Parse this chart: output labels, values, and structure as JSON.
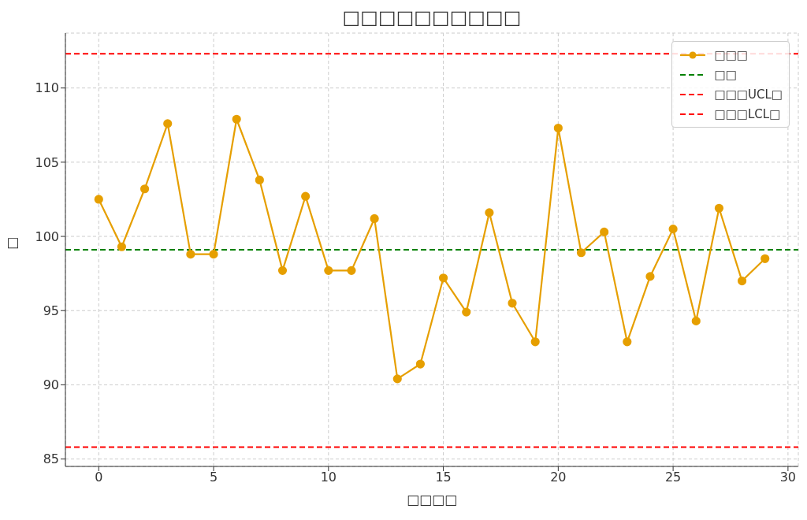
{
  "chart_data": {
    "type": "line",
    "title": "□□□□□□□□□□",
    "xlabel": "□□□□",
    "ylabel": "□",
    "x": [
      0,
      1,
      2,
      3,
      4,
      5,
      6,
      7,
      8,
      9,
      10,
      11,
      12,
      13,
      14,
      15,
      16,
      17,
      18,
      19,
      20,
      21,
      22,
      23,
      24,
      25,
      26,
      27,
      28,
      29
    ],
    "series": [
      {
        "name": "□□□",
        "color": "#e69f00",
        "values": [
          102.5,
          99.3,
          103.2,
          107.6,
          98.8,
          98.8,
          107.9,
          103.8,
          97.7,
          102.7,
          97.7,
          97.7,
          101.2,
          90.4,
          91.4,
          97.2,
          94.9,
          101.6,
          95.5,
          92.9,
          107.3,
          98.9,
          100.3,
          92.9,
          97.3,
          100.5,
          94.3,
          101.9,
          97.0,
          98.5
        ]
      }
    ],
    "ref_lines": [
      {
        "axis": "y",
        "value": 99.1,
        "label": "□□",
        "color": "#008000",
        "line_style": "dashed"
      },
      {
        "axis": "y",
        "value": 112.3,
        "label": "□□□UCL□",
        "color": "#ff0000",
        "line_style": "dashed"
      },
      {
        "axis": "y",
        "value": 85.8,
        "label": "□□□LCL□",
        "color": "#ff0000",
        "line_style": "dashed"
      }
    ],
    "xlim": [
      -1.45,
      30.45
    ],
    "xticks": [
      0,
      5,
      10,
      15,
      20,
      25,
      30
    ],
    "ylim": [
      84.5,
      113.7
    ],
    "yticks": [
      85,
      90,
      95,
      100,
      105,
      110
    ],
    "grid": true,
    "legend": "top right",
    "marker": "circle",
    "line_style": "solid"
  }
}
